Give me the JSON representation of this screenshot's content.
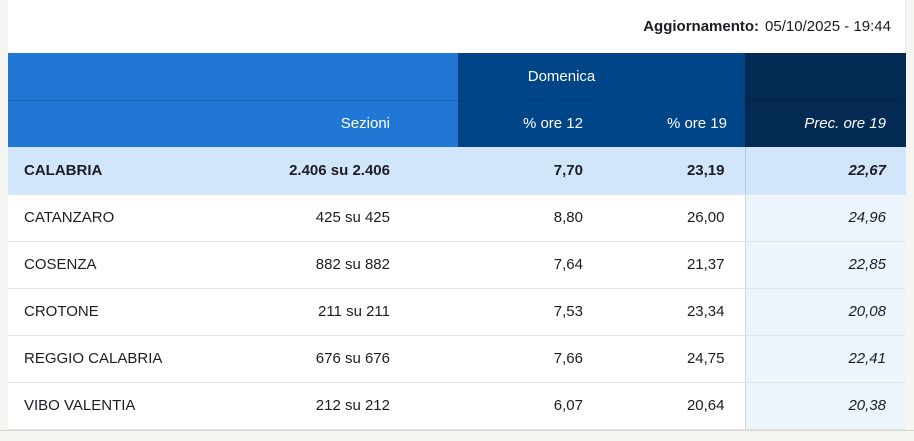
{
  "update": {
    "label": "Aggiornamento:",
    "value": "05/10/2025 - 19:44"
  },
  "table": {
    "group_header": "Domenica",
    "columns": {
      "sezioni": "Sezioni",
      "ore12": "% ore 12",
      "ore19": "% ore 19",
      "prec": "Prec. ore 19"
    },
    "rows": [
      {
        "name": "CALABRIA",
        "sezioni": "2.406 su 2.406",
        "ore12": "7,70",
        "ore19": "23,19",
        "prec": "22,67",
        "highlight": true
      },
      {
        "name": "CATANZARO",
        "sezioni": "425 su 425",
        "ore12": "8,80",
        "ore19": "26,00",
        "prec": "24,96",
        "highlight": false
      },
      {
        "name": "COSENZA",
        "sezioni": "882 su 882",
        "ore12": "7,64",
        "ore19": "21,37",
        "prec": "22,85",
        "highlight": false
      },
      {
        "name": "CROTONE",
        "sezioni": "211 su 211",
        "ore12": "7,53",
        "ore19": "23,34",
        "prec": "20,08",
        "highlight": false
      },
      {
        "name": "REGGIO CALABRIA",
        "sezioni": "676 su 676",
        "ore12": "7,66",
        "ore19": "24,75",
        "prec": "22,41",
        "highlight": false
      },
      {
        "name": "VIBO VALENTIA",
        "sezioni": "212 su 212",
        "ore12": "6,07",
        "ore19": "20,64",
        "prec": "20,38",
        "highlight": false
      }
    ]
  },
  "colors": {
    "header-blue": "#2277d4",
    "header-mid": "#004587",
    "header-dark": "#022a52",
    "row-highlight": "#d2e6fb",
    "prec-tint": "#edf4fc",
    "row-border": "#e4e4e4",
    "prec-border": "#c9d7e4",
    "page-bg": "#f5f5f2",
    "text": "#1c1c24"
  }
}
